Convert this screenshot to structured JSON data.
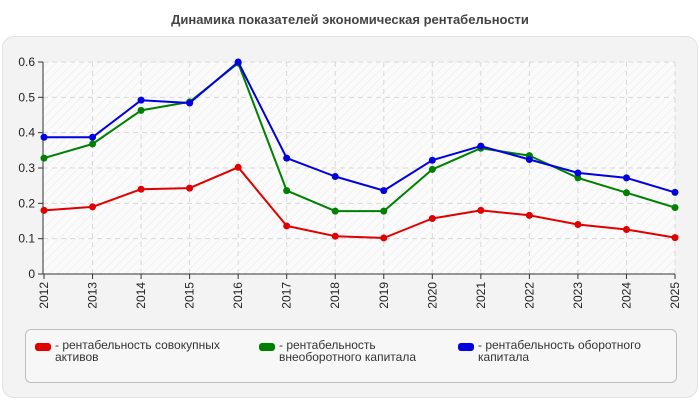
{
  "title": "Динамика показателей экономическая рентабельности",
  "chart_data": {
    "type": "line",
    "title": "Динамика показателей экономическая рентабельности",
    "xlabel": "",
    "ylabel": "",
    "categories": [
      "2012",
      "2013",
      "2014",
      "2015",
      "2016",
      "2017",
      "2018",
      "2019",
      "2020",
      "2021",
      "2022",
      "2023",
      "2024",
      "2025"
    ],
    "ylim": [
      0,
      0.6
    ],
    "yticks": [
      "0",
      "0.1",
      "0.2",
      "0.3",
      "0.4",
      "0.5",
      "0.6"
    ],
    "grid": true,
    "legend_position": "bottom",
    "series": [
      {
        "name": "- рентабельность совокупных активов",
        "color": "#e00000",
        "values": [
          0.18,
          0.19,
          0.24,
          0.243,
          0.302,
          0.136,
          0.107,
          0.102,
          0.157,
          0.18,
          0.166,
          0.14,
          0.126,
          0.103
        ]
      },
      {
        "name": "- рентабельность внеоборотного капитала",
        "color": "#008000",
        "values": [
          0.328,
          0.368,
          0.463,
          0.487,
          0.597,
          0.236,
          0.178,
          0.178,
          0.296,
          0.356,
          0.335,
          0.272,
          0.23,
          0.188
        ]
      },
      {
        "name": "- рентабельность оборотного капитала",
        "color": "#0000e0",
        "values": [
          0.387,
          0.387,
          0.492,
          0.484,
          0.6,
          0.328,
          0.276,
          0.236,
          0.322,
          0.362,
          0.324,
          0.286,
          0.272,
          0.231
        ]
      }
    ]
  },
  "legend": [
    {
      "label_line1": "- рентабельность совокупных",
      "label_line2": "активов",
      "color": "#e00000"
    },
    {
      "label_line1": "- рентабельность",
      "label_line2": "внеоборотного капитала",
      "color": "#008000"
    },
    {
      "label_line1": "- рентабельность оборотного",
      "label_line2": "капитала",
      "color": "#0000e0"
    }
  ]
}
